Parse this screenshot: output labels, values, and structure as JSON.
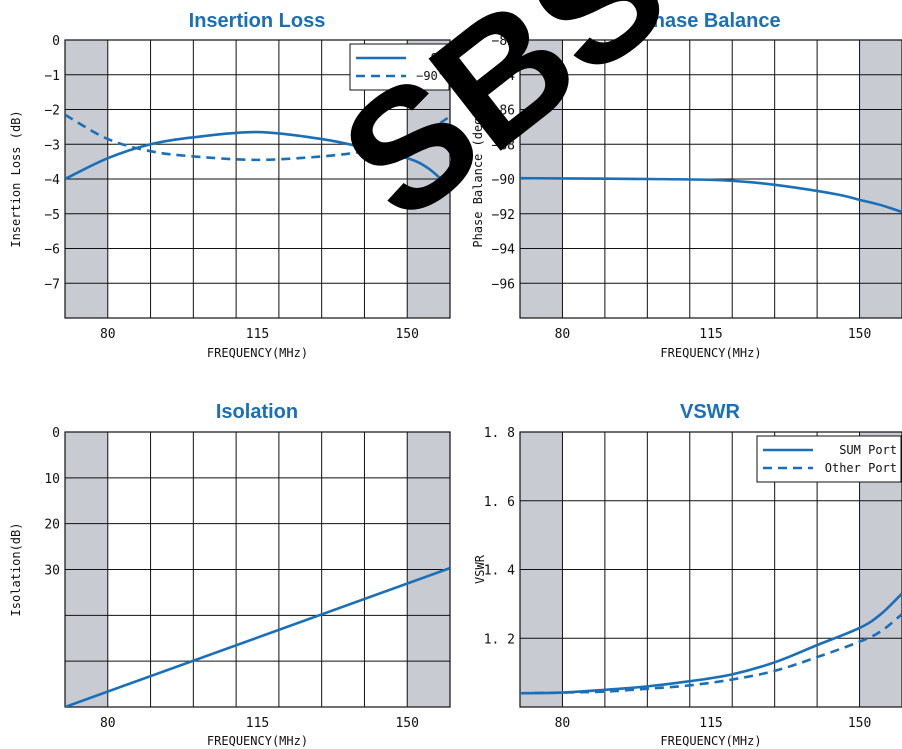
{
  "chart_data": [
    {
      "type": "line",
      "title": "Insertion Loss",
      "xlabel": "FREQUENCY(MHz)",
      "ylabel": "Insertion Loss (dB)",
      "xlim": [
        70,
        160
      ],
      "ylim": [
        -8,
        0
      ],
      "xticks": [
        "80",
        "115",
        "150"
      ],
      "yticks": [
        "0",
        "−1",
        "−2",
        "−3",
        "−4",
        "−5",
        "−6",
        "−7"
      ],
      "grid": true,
      "shaded_bands": [
        [
          70,
          80
        ],
        [
          150,
          160
        ]
      ],
      "legend": "top-right",
      "series": [
        {
          "name": "0°",
          "style": "solid",
          "x": [
            70,
            80,
            90,
            100,
            115,
            130,
            140,
            150,
            155,
            160
          ],
          "y": [
            -4.0,
            -3.4,
            -3.0,
            -2.8,
            -2.65,
            -2.85,
            -3.1,
            -3.4,
            -3.7,
            -4.25
          ]
        },
        {
          "name": "−90°",
          "style": "dashed",
          "x": [
            70,
            80,
            90,
            100,
            115,
            130,
            140,
            150,
            155,
            160
          ],
          "y": [
            -2.15,
            -2.85,
            -3.2,
            -3.35,
            -3.45,
            -3.35,
            -3.2,
            -2.9,
            -2.6,
            -2.2
          ]
        }
      ]
    },
    {
      "type": "line",
      "title": "Phase Balance",
      "xlabel": "FREQUENCY(MHz)",
      "ylabel": "Phase Balance (deg)",
      "xlim": [
        70,
        160
      ],
      "ylim": [
        -98,
        -82
      ],
      "xticks": [
        "80",
        "115",
        "150"
      ],
      "yticks": [
        "−82",
        "−84",
        "−86",
        "−88",
        "−90",
        "−92",
        "−94",
        "−96"
      ],
      "grid": true,
      "shaded_bands": [
        [
          70,
          80
        ],
        [
          150,
          160
        ]
      ],
      "series": [
        {
          "style": "solid",
          "x": [
            70,
            80,
            100,
            115,
            125,
            135,
            145,
            150,
            155,
            160
          ],
          "y": [
            -89.95,
            -89.97,
            -90.0,
            -90.05,
            -90.2,
            -90.5,
            -90.9,
            -91.2,
            -91.5,
            -91.9
          ]
        }
      ]
    },
    {
      "type": "line",
      "title": "Isolation",
      "xlabel": "FREQUENCY(MHz)",
      "ylabel": "Isolation(dB)",
      "xlim": [
        70,
        160
      ],
      "ylim": [
        40,
        0
      ],
      "xticks": [
        "80",
        "115",
        "150"
      ],
      "yticks": [
        "0",
        "10",
        "20",
        "30"
      ],
      "grid": true,
      "shaded_bands": [
        [
          70,
          80
        ],
        [
          150,
          160
        ]
      ],
      "series": [
        {
          "style": "solid",
          "x": [
            70,
            160
          ],
          "y": [
            40,
            19.8
          ]
        }
      ]
    },
    {
      "type": "line",
      "title": "VSWR",
      "xlabel": "FREQUENCY(MHz)",
      "ylabel": "VSWR",
      "xlim": [
        70,
        160
      ],
      "ylim": [
        1.0,
        1.8
      ],
      "xticks": [
        "80",
        "115",
        "150"
      ],
      "yticks": [
        "1. 8",
        "1. 6",
        "1. 4",
        "1. 2"
      ],
      "grid": true,
      "shaded_bands": [
        [
          70,
          80
        ],
        [
          150,
          160
        ]
      ],
      "legend": "top-right",
      "series": [
        {
          "name": "SUM Port",
          "style": "solid",
          "x": [
            70,
            80,
            90,
            100,
            110,
            120,
            130,
            140,
            150,
            155,
            160
          ],
          "y": [
            1.04,
            1.042,
            1.05,
            1.06,
            1.075,
            1.095,
            1.13,
            1.18,
            1.23,
            1.27,
            1.33
          ]
        },
        {
          "name": "Other Port",
          "style": "dashed",
          "x": [
            70,
            80,
            90,
            100,
            110,
            120,
            130,
            140,
            150,
            155,
            160
          ],
          "y": [
            1.04,
            1.042,
            1.045,
            1.053,
            1.063,
            1.08,
            1.105,
            1.145,
            1.19,
            1.22,
            1.27
          ]
        }
      ]
    }
  ],
  "watermark": "SBS"
}
